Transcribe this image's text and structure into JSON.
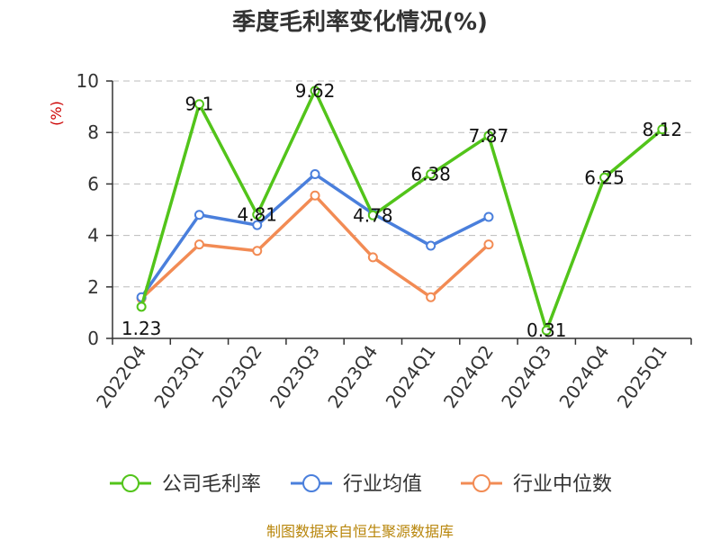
{
  "chart_data": {
    "type": "line",
    "title": "季度毛利率变化情况(%)",
    "ylabel": "(%)",
    "ylim": [
      0,
      10
    ],
    "yticks": [
      0,
      2,
      4,
      6,
      8,
      10
    ],
    "grid": "horizontal dashed",
    "legend_position": "bottom",
    "categories": [
      "2022Q4",
      "2023Q1",
      "2023Q2",
      "2023Q3",
      "2023Q4",
      "2024Q1",
      "2024Q2",
      "2024Q3",
      "2024Q4",
      "2025Q1"
    ],
    "series": [
      {
        "name": "公司毛利率",
        "color": "#52c41a",
        "values": [
          1.23,
          9.1,
          4.81,
          9.62,
          4.78,
          6.38,
          7.87,
          0.31,
          6.25,
          8.12
        ],
        "labels": [
          "1.23",
          "9.1",
          "4.81",
          "9.62",
          "4.78",
          "6.38",
          "7.87",
          "0.31",
          "6.25",
          "8.12"
        ]
      },
      {
        "name": "行业均值",
        "color": "#4a7fdc",
        "values": [
          1.6,
          4.8,
          4.4,
          6.38,
          4.85,
          3.6,
          4.72,
          null,
          null,
          null
        ]
      },
      {
        "name": "行业中位数",
        "color": "#f28b54",
        "values": [
          1.55,
          3.65,
          3.4,
          5.55,
          3.15,
          1.6,
          3.65,
          null,
          null,
          null
        ]
      }
    ]
  },
  "footer": {
    "source": "制图数据来自恒生聚源数据库"
  }
}
